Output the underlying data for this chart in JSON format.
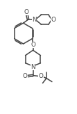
{
  "bg_color": "#ffffff",
  "line_color": "#444444",
  "line_width": 1.1,
  "font_size": 5.8,
  "figsize": [
    1.11,
    1.64
  ],
  "dpi": 100,
  "xlim": [
    0,
    11
  ],
  "ylim": [
    0,
    16
  ]
}
